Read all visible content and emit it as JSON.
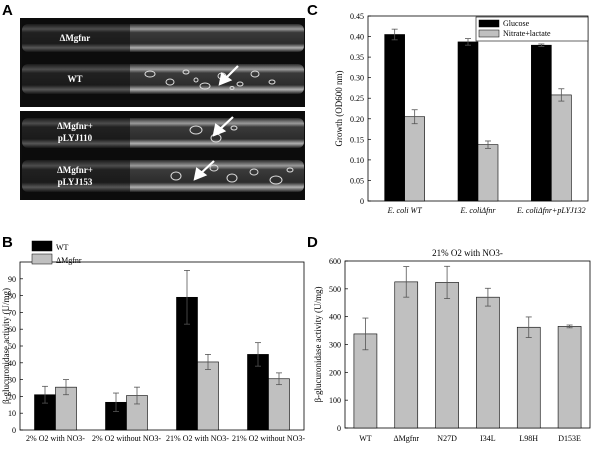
{
  "panels": {
    "a": {
      "letter": "A",
      "tube_labels": [
        {
          "line1": "ΔMgfnr",
          "line2": ""
        },
        {
          "line1": "WT",
          "line2": ""
        },
        {
          "line1": "ΔMgfnr+",
          "line2": "pLYJ110"
        },
        {
          "line1": "ΔMgfnr+",
          "line2": "pLYJ153"
        }
      ]
    },
    "b": {
      "letter": "B"
    },
    "c": {
      "letter": "C"
    },
    "d": {
      "letter": "D"
    }
  },
  "chart_data": [
    {
      "id": "C",
      "type": "bar",
      "title": "",
      "xlabel": "",
      "ylabel": "Growth (OD600 nm)",
      "ylim": [
        0,
        0.45
      ],
      "yticks": [
        "0",
        "0.05",
        "0.10",
        "0.15",
        "0.20",
        "0.25",
        "0.30",
        "0.35",
        "0.40",
        "0.45"
      ],
      "categories": [
        "E. coli WT",
        "E. coliΔfnr",
        "E. coliΔfnr+pLYJ132"
      ],
      "legend_position": "top-right",
      "series": [
        {
          "name": "Glucose",
          "color": "#000000",
          "values": [
            0.405,
            0.387,
            0.379
          ],
          "errors": [
            0.013,
            0.008,
            0.003
          ]
        },
        {
          "name": "Nitrate+lactate",
          "color": "#c0c0c0",
          "values": [
            0.205,
            0.137,
            0.258
          ],
          "errors": [
            0.017,
            0.009,
            0.015
          ]
        }
      ]
    },
    {
      "id": "B",
      "type": "bar",
      "title": "",
      "xlabel": "",
      "ylabel": "β-glucuronidase activity (U/mg)",
      "ylim": [
        0,
        100
      ],
      "yticks": [
        "0",
        "10",
        "20",
        "30",
        "40",
        "50",
        "60",
        "70",
        "80",
        "90"
      ],
      "categories": [
        "2% O2 with NO3-",
        "2% O2 without NO3-",
        "21% O2 with NO3-",
        "21% O2 without NO3-"
      ],
      "legend_position": "top-left",
      "series": [
        {
          "name": "WT",
          "color": "#000000",
          "values": [
            21,
            16.5,
            79,
            45
          ],
          "errors": [
            5,
            5.5,
            16,
            7
          ]
        },
        {
          "name": "ΔMgfnr",
          "color": "#c0c0c0",
          "values": [
            25.5,
            20.5,
            40.5,
            30.5
          ],
          "errors": [
            4.5,
            5,
            4.5,
            3.5
          ]
        }
      ]
    },
    {
      "id": "D",
      "type": "bar",
      "title": "21% O2 with NO3-",
      "xlabel": "",
      "ylabel": "β-glucuronidase activity (U/mg)",
      "ylim": [
        0,
        600
      ],
      "yticks": [
        "0",
        "100",
        "200",
        "300",
        "400",
        "500",
        "600"
      ],
      "categories": [
        "WT",
        "ΔMgfnr",
        "N27D",
        "I34L",
        "L98H",
        "D153E"
      ],
      "series": [
        {
          "name": "",
          "color": "#c0c0c0",
          "values": [
            338,
            525,
            523,
            470,
            362,
            365
          ],
          "errors": [
            57,
            55,
            58,
            32,
            37,
            5
          ]
        }
      ]
    }
  ]
}
